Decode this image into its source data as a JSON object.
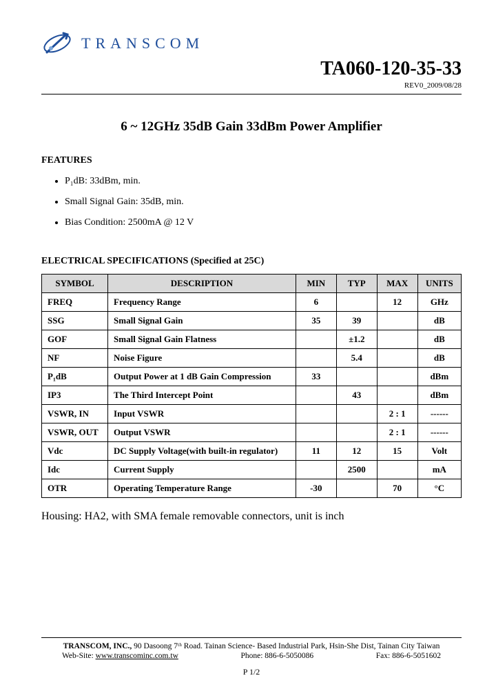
{
  "header": {
    "company_name": "TRANSCOM",
    "logo_color_primary": "#1f4e9b",
    "logo_color_accent": "#7aa5d8",
    "part_number": "TA060-120-35-33",
    "revision": "REV0_2009/08/28"
  },
  "title": "6 ~ 12GHz 35dB Gain 33dBm Power Amplifier",
  "features": {
    "heading": "FEATURES",
    "items": [
      "P₁dB:  33dBm, min.",
      "Small Signal Gain:  35dB, min.",
      "Bias Condition: 2500mA @ 12 V"
    ]
  },
  "specs": {
    "heading": "ELECTRICAL SPECIFICATIONS (Specified at 25C)",
    "columns": [
      "SYMBOL",
      "DESCRIPTION",
      "MIN",
      "TYP",
      "MAX",
      "UNITS"
    ],
    "header_bg": "#d9d9d9",
    "border_color": "#000000",
    "rows": [
      {
        "sym": "FREQ",
        "desc": "Frequency Range",
        "min": "6",
        "typ": "",
        "max": "12",
        "units": "GHz"
      },
      {
        "sym": "SSG",
        "desc": "Small Signal Gain",
        "min": "35",
        "typ": "39",
        "max": "",
        "units": "dB"
      },
      {
        "sym": "GOF",
        "desc": "Small Signal Gain Flatness",
        "min": "",
        "typ": "±1.2",
        "max": "",
        "units": "dB"
      },
      {
        "sym": "NF",
        "desc": "Noise Figure",
        "min": "",
        "typ": "5.4",
        "max": "",
        "units": "dB"
      },
      {
        "sym": "P₁dB",
        "desc": "Output Power at 1 dB Gain Compression",
        "min": "33",
        "typ": "",
        "max": "",
        "units": "dBm"
      },
      {
        "sym": "IP3",
        "desc": "The Third Intercept Point",
        "min": "",
        "typ": "43",
        "max": "",
        "units": "dBm"
      },
      {
        "sym": "VSWR, IN",
        "desc": "Input VSWR",
        "min": "",
        "typ": "",
        "max": "2 : 1",
        "units": "------"
      },
      {
        "sym": "VSWR, OUT",
        "desc": "Output VSWR",
        "min": "",
        "typ": "",
        "max": "2 : 1",
        "units": "------"
      },
      {
        "sym": "Vdc",
        "desc": "DC Supply Voltage(with built-in regulator)",
        "min": "11",
        "typ": "12",
        "max": "15",
        "units": "Volt"
      },
      {
        "sym": "Idc",
        "desc": "Current Supply",
        "min": "",
        "typ": "2500",
        "max": "",
        "units": "mA"
      },
      {
        "sym": "OTR",
        "desc": "Operating Temperature Range",
        "min": "-30",
        "typ": "",
        "max": "70",
        "units": "°C"
      }
    ]
  },
  "housing": "Housing:  HA2, with SMA female removable connectors, unit is inch",
  "footer": {
    "address_bold": "TRANSCOM, INC.,",
    "address_rest": " 90 Dasoong 7ᵗʰ Road. Tainan Science- Based Industrial Park, Hsin-She Dist, Tainan City Taiwan",
    "website_label": "Web-Site: ",
    "website": "www.transcominc.com.tw",
    "phone": "Phone: 886-6-5050086",
    "fax": "Fax: 886-6-5051602",
    "page": "P 1/2"
  }
}
